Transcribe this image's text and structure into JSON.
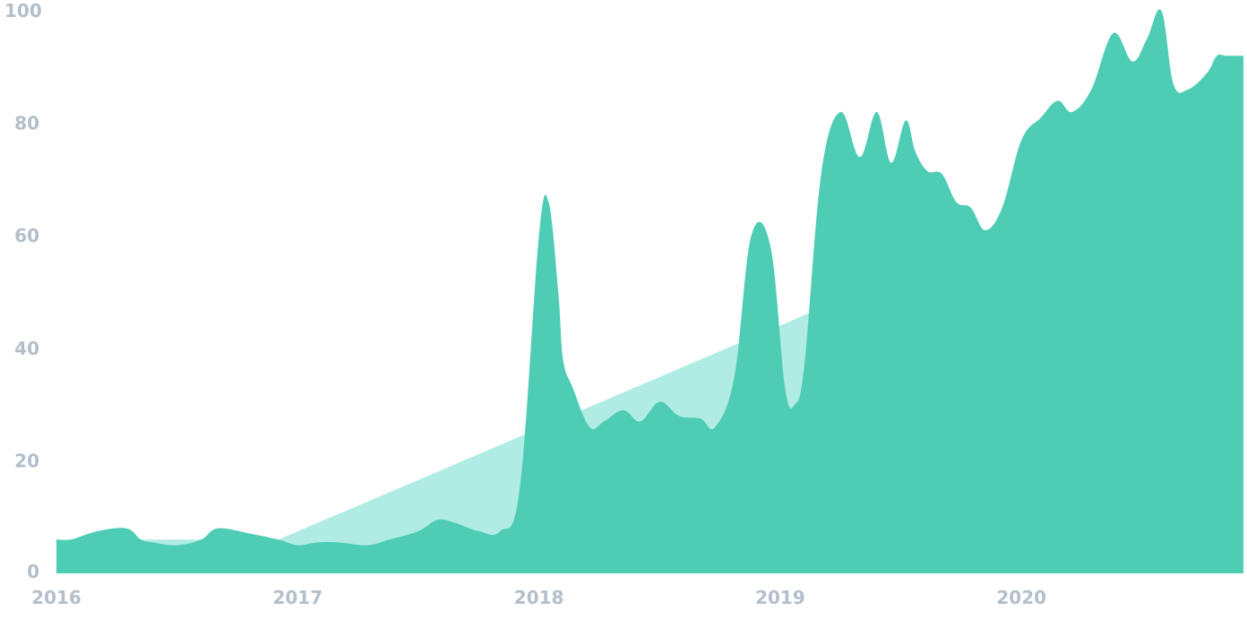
{
  "chart_data": {
    "type": "area",
    "title": "",
    "xlabel": "",
    "ylabel": "",
    "xlim": [
      2016.0,
      2020.92
    ],
    "ylim": [
      0,
      100
    ],
    "yticks": [
      0,
      20,
      40,
      60,
      80,
      100
    ],
    "xticks": [
      2016,
      2017,
      2018,
      2019,
      2020
    ],
    "grid": false,
    "legend": "none",
    "colors": {
      "trend_fill": "#b1ece4",
      "series_fill": "#4ecdb4",
      "tick_label": "#b4bfca"
    },
    "series": [
      {
        "role": "trend",
        "x": [
          2016.0,
          2016.92,
          2020.69
        ],
        "y": [
          6,
          6,
          75
        ]
      },
      {
        "role": "interest",
        "x": [
          2016.0,
          2016.06,
          2016.17,
          2016.29,
          2016.35,
          2016.4,
          2016.5,
          2016.6,
          2016.67,
          2016.81,
          2016.92,
          2017.0,
          2017.08,
          2017.17,
          2017.29,
          2017.38,
          2017.5,
          2017.58,
          2017.65,
          2017.75,
          2017.84,
          2017.92,
          2018.0,
          2018.04,
          2018.08,
          2018.1,
          2018.14,
          2018.21,
          2018.27,
          2018.35,
          2018.42,
          2018.5,
          2018.58,
          2018.67,
          2018.73,
          2018.81,
          2018.88,
          2018.96,
          2019.02,
          2019.06,
          2019.1,
          2019.17,
          2019.25,
          2019.33,
          2019.4,
          2019.46,
          2019.52,
          2019.56,
          2019.61,
          2019.67,
          2019.73,
          2019.79,
          2019.85,
          2019.92,
          2020.0,
          2020.08,
          2020.15,
          2020.21,
          2020.29,
          2020.38,
          2020.46,
          2020.52,
          2020.58,
          2020.63,
          2020.69,
          2020.77,
          2020.81,
          2020.85,
          2020.92
        ],
        "y": [
          6,
          6,
          7.5,
          8,
          6,
          5.5,
          5,
          6,
          8,
          7,
          6,
          5,
          5.5,
          5.5,
          5,
          6,
          7.5,
          9.5,
          9,
          7.5,
          7.5,
          15,
          60,
          66,
          50,
          38,
          33,
          26,
          27,
          29,
          27,
          30.5,
          28,
          27.5,
          26,
          35,
          60,
          58,
          33,
          30,
          37,
          71,
          82,
          74,
          82,
          73,
          80.5,
          75,
          71.5,
          71,
          66,
          65,
          61,
          65,
          77,
          81,
          84,
          82,
          86,
          96,
          91,
          95,
          100,
          87,
          86,
          89,
          92,
          92,
          92
        ]
      }
    ]
  }
}
